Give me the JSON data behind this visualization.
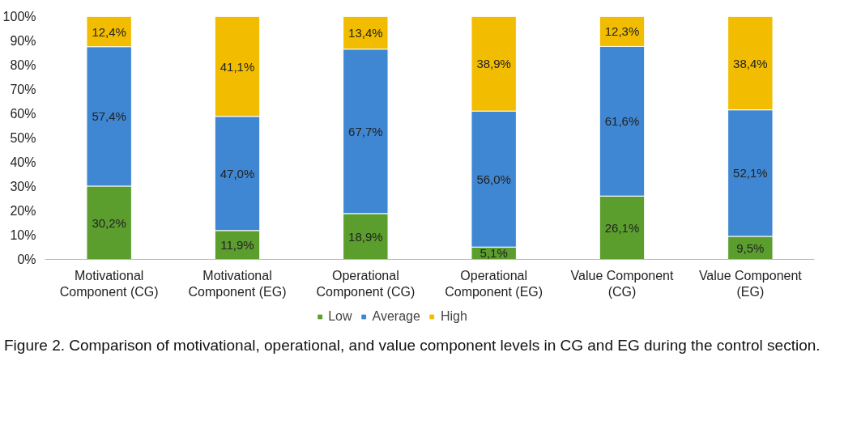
{
  "chart_data": {
    "type": "bar",
    "stacked": true,
    "categories": [
      "Motivational Component (CG)",
      "Motivational Component (EG)",
      "Operational Component (CG)",
      "Operational Component (EG)",
      "Value Component (CG)",
      "Value Component (EG)"
    ],
    "series": [
      {
        "name": "Low",
        "color": "#5b9e2e",
        "values": [
          30.2,
          11.9,
          18.9,
          5.1,
          26.1,
          9.5
        ],
        "value_labels": [
          "30,2%",
          "11,9%",
          "18,9%",
          "5,1%",
          "26,1%",
          "9,5%"
        ]
      },
      {
        "name": "Average",
        "color": "#3f87d2",
        "values": [
          57.4,
          47.0,
          67.7,
          56.0,
          61.6,
          52.1
        ],
        "value_labels": [
          "57,4%",
          "47,0%",
          "67,7%",
          "56,0%",
          "61,6%",
          "52,1%"
        ]
      },
      {
        "name": "High",
        "color": "#f2bd00",
        "values": [
          12.4,
          41.1,
          13.4,
          38.9,
          12.3,
          38.4
        ],
        "value_labels": [
          "12,4%",
          "41,1%",
          "13,4%",
          "38,9%",
          "12,3%",
          "38,4%"
        ]
      }
    ],
    "ylim": [
      0,
      100
    ],
    "yticks": [
      {
        "value": 0,
        "label": "0%"
      },
      {
        "value": 10,
        "label": "10%"
      },
      {
        "value": 20,
        "label": "20%"
      },
      {
        "value": 30,
        "label": "30%"
      },
      {
        "value": 40,
        "label": "40%"
      },
      {
        "value": 50,
        "label": "50%"
      },
      {
        "value": 60,
        "label": "60%"
      },
      {
        "value": 70,
        "label": "70%"
      },
      {
        "value": 80,
        "label": "80%"
      },
      {
        "value": 90,
        "label": "90%"
      },
      {
        "value": 100,
        "label": "100%"
      }
    ],
    "legend": "bottom",
    "grid": false,
    "annotations": [
      "Figure 2. Comparison of motivational, operational, and value component levels in CG and EG during the control section."
    ]
  }
}
